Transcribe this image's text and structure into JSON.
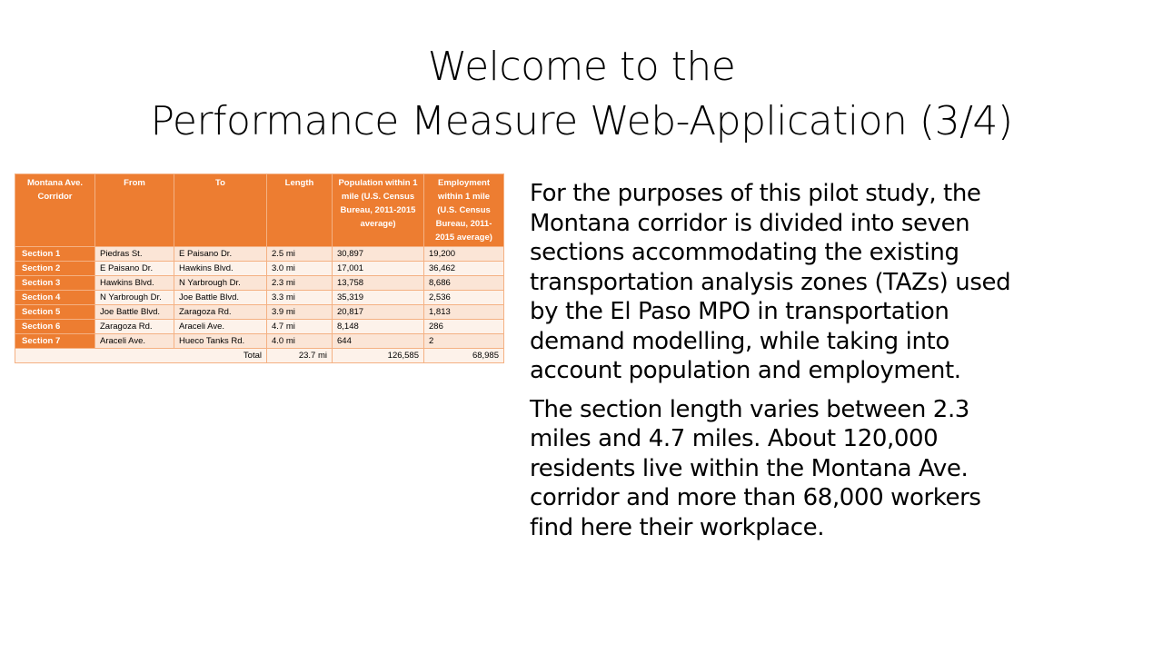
{
  "title": {
    "line1": "Welcome to the",
    "line2": "Performance Measure Web-Application (3/4)"
  },
  "table": {
    "headers": {
      "corridor": "Montana Ave. Corridor",
      "from": "From",
      "to": "To",
      "length": "Length",
      "population": "Population within 1 mile (U.S. Census Bureau, 2011-2015 average)",
      "employment": "Employment within 1 mile (U.S. Census Bureau, 2011-2015 average)"
    },
    "rows": [
      {
        "section": "Section 1",
        "from": "Piedras St.",
        "to": "E Paisano Dr.",
        "length": "2.5 mi",
        "population": "30,897",
        "employment": "19,200"
      },
      {
        "section": "Section 2",
        "from": "E Paisano Dr.",
        "to": "Hawkins Blvd.",
        "length": "3.0 mi",
        "population": "17,001",
        "employment": "36,462"
      },
      {
        "section": "Section 3",
        "from": "Hawkins Blvd.",
        "to": "N Yarbrough Dr.",
        "length": "2.3 mi",
        "population": "13,758",
        "employment": "8,686"
      },
      {
        "section": "Section 4",
        "from": "N Yarbrough Dr.",
        "to": "Joe Battle Blvd.",
        "length": "3.3 mi",
        "population": "35,319",
        "employment": "2,536"
      },
      {
        "section": "Section 5",
        "from": "Joe Battle Blvd.",
        "to": "Zaragoza Rd.",
        "length": "3.9 mi",
        "population": "20,817",
        "employment": "1,813"
      },
      {
        "section": "Section 6",
        "from": "Zaragoza Rd.",
        "to": "Araceli Ave.",
        "length": "4.7 mi",
        "population": "8,148",
        "employment": "286"
      },
      {
        "section": "Section 7",
        "from": "Araceli Ave.",
        "to": "Hueco Tanks Rd.",
        "length": "4.0 mi",
        "population": "644",
        "employment": "2"
      }
    ],
    "total": {
      "label": "Total",
      "length": "23.7 mi",
      "population": "126,585",
      "employment": "68,985"
    }
  },
  "body": {
    "paragraph1": [
      "For the purposes of this pilot study, the",
      "Montana corridor is divided into seven",
      "sections accommodating the existing",
      "transportation analysis zones (TAZs) used",
      "by the El Paso MPO in transportation",
      "demand modelling, while taking into",
      "account population and employment."
    ],
    "paragraph2": [
      "The section length varies between 2.3",
      "miles and 4.7 miles. About 120,000",
      "residents live within the Montana Ave.",
      "corridor and more than 68,000 workers",
      "find here their workplace."
    ]
  },
  "colors": {
    "header_orange": "#ed7d31",
    "row_fill": "#fbe5d6",
    "border": "#f4b183"
  }
}
